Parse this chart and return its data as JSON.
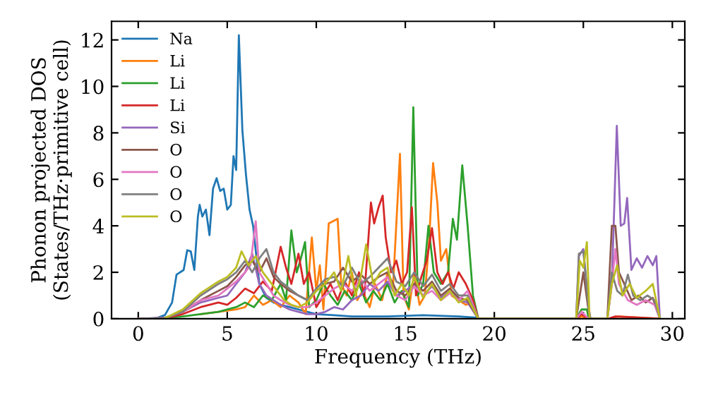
{
  "chart_data": {
    "type": "line",
    "xlabel": "Frequency (THz)",
    "ylabel": "Phonon projected DOS\n(States/THz·primitive cell)",
    "xlim": [
      -1.5,
      30.7
    ],
    "ylim": [
      0,
      12.8
    ],
    "xticks": [
      0,
      5,
      10,
      15,
      20,
      25,
      30
    ],
    "yticks": [
      0,
      2,
      4,
      6,
      8,
      10,
      12
    ],
    "grid": false,
    "legend": "top left",
    "series": [
      {
        "name": "Na",
        "color": "#1f77b4",
        "x": [
          0,
          1,
          1.5,
          1.9,
          2.15,
          2.55,
          2.75,
          2.95,
          3.15,
          3.35,
          3.45,
          3.6,
          3.8,
          4.0,
          4.2,
          4.4,
          4.6,
          4.8,
          5.0,
          5.2,
          5.35,
          5.5,
          5.65,
          5.85,
          6.05,
          6.25,
          6.45,
          6.8,
          7.2,
          7.6,
          8.0,
          8.5,
          9.0,
          9.5,
          10,
          11,
          12,
          14,
          16,
          18,
          19,
          19.2,
          24.6
        ],
        "values": [
          0,
          0.02,
          0.16,
          0.7,
          1.9,
          2.1,
          2.95,
          2.9,
          2.1,
          4.4,
          4.9,
          4.4,
          4.7,
          3.6,
          5.6,
          6.05,
          5.5,
          5.6,
          4.7,
          4.9,
          7.0,
          6.4,
          12.2,
          8.1,
          6.2,
          4.7,
          4.0,
          1.5,
          0.9,
          0.7,
          0.6,
          0.5,
          0.4,
          0.3,
          0.2,
          0.15,
          0.1,
          0.1,
          0.15,
          0.1,
          0.05,
          0,
          0
        ]
      },
      {
        "name": "Li",
        "color": "#ff7f0e",
        "x": [
          3.5,
          4.5,
          5.5,
          6.0,
          6.5,
          7.0,
          7.5,
          8.0,
          8.5,
          9.0,
          9.4,
          9.75,
          10.0,
          10.2,
          10.4,
          10.7,
          10.95,
          11.2,
          11.4,
          11.7,
          12.0,
          12.3,
          12.6,
          13.0,
          13.3,
          13.7,
          14.0,
          14.3,
          14.7,
          14.9,
          15.2,
          15.5,
          15.8,
          16.1,
          16.35,
          16.56,
          16.8,
          17.0,
          17.3,
          17.6,
          18.0,
          18.4,
          18.8,
          19.1,
          24.6,
          24.9,
          25.3,
          26.4,
          27,
          29.3
        ],
        "values": [
          0.2,
          0.3,
          0.4,
          0.5,
          1.0,
          0.6,
          0.8,
          0.5,
          1.0,
          0.7,
          0.2,
          3.5,
          1.2,
          2.3,
          0.4,
          4.1,
          4.2,
          4.3,
          1.5,
          1.0,
          2.0,
          0.8,
          1.2,
          0.5,
          1.5,
          0.8,
          2.0,
          1.2,
          7.1,
          1.0,
          0.4,
          2.0,
          0.6,
          1.0,
          3.5,
          6.7,
          5.0,
          2.5,
          3.0,
          1.0,
          0.8,
          0.6,
          0.7,
          0,
          0,
          0.1,
          0,
          0,
          0.1,
          0
        ]
      },
      {
        "name": "Li",
        "color": "#2ca02c",
        "x": [
          0,
          1.5,
          2.5,
          3.5,
          4.5,
          5.5,
          6.0,
          6.5,
          7.0,
          7.5,
          8.0,
          8.3,
          8.6,
          8.9,
          9.1,
          9.37,
          9.6,
          10.0,
          10.4,
          10.8,
          11.2,
          11.6,
          12.0,
          12.4,
          12.8,
          13.2,
          13.6,
          14.0,
          14.4,
          14.8,
          15.2,
          15.45,
          15.7,
          16.0,
          16.3,
          16.6,
          17.0,
          17.4,
          17.67,
          17.9,
          18.2,
          18.5,
          18.8,
          19.1,
          24.6,
          24.9,
          25.2,
          25.3,
          26.4
        ],
        "values": [
          0,
          0.02,
          0.1,
          0.2,
          0.3,
          0.5,
          0.7,
          0.5,
          1.0,
          0.8,
          1.5,
          0.8,
          3.8,
          2.0,
          2.5,
          3.3,
          0.5,
          0.8,
          1.5,
          1.0,
          0.6,
          1.2,
          0.8,
          1.5,
          0.7,
          1.2,
          0.8,
          1.5,
          0.7,
          1.2,
          0.5,
          9.1,
          1.0,
          1.5,
          4.0,
          2.0,
          1.5,
          2.0,
          4.3,
          3.4,
          6.6,
          4.0,
          1.0,
          0,
          0,
          0.4,
          0.4,
          0,
          0
        ]
      },
      {
        "name": "Li",
        "color": "#d62728",
        "x": [
          0,
          1.5,
          2.5,
          3.5,
          4.5,
          5.0,
          5.5,
          6.0,
          6.5,
          7.0,
          7.5,
          8.0,
          8.3,
          8.6,
          9.0,
          9.3,
          9.6,
          10.0,
          10.4,
          10.8,
          11.2,
          11.6,
          12.0,
          12.4,
          12.7,
          13.07,
          13.25,
          13.5,
          13.73,
          13.9,
          14.2,
          14.5,
          14.8,
          15.1,
          15.37,
          15.6,
          15.9,
          16.2,
          16.5,
          16.8,
          17.1,
          17.4,
          17.7,
          18.0,
          18.4,
          18.8,
          19.1,
          24.6,
          24.9,
          25.3,
          26.4,
          26.8,
          29.3
        ],
        "values": [
          0,
          0.02,
          0.2,
          0.5,
          0.7,
          0.6,
          0.9,
          1.3,
          1.1,
          1.6,
          1.2,
          3.1,
          2.2,
          1.5,
          2.8,
          1.5,
          2.0,
          0.5,
          1.0,
          1.5,
          0.8,
          1.6,
          1.0,
          2.0,
          1.0,
          5.0,
          4.1,
          4.8,
          5.3,
          3.5,
          2.0,
          2.5,
          1.5,
          2.0,
          4.8,
          1.0,
          1.8,
          2.5,
          3.9,
          2.0,
          1.5,
          2.0,
          1.3,
          2.0,
          1.5,
          0.8,
          0,
          0,
          0.2,
          0,
          0,
          0.1,
          0
        ]
      },
      {
        "name": "Si",
        "color": "#9467bd",
        "x": [
          0,
          1.5,
          2.5,
          3.5,
          4.5,
          5.0,
          5.5,
          6.0,
          6.4,
          6.8,
          7.2,
          7.6,
          8.0,
          8.5,
          9.0,
          9.5,
          10.0,
          10.5,
          11.0,
          11.5,
          12.0,
          12.5,
          13.0,
          13.5,
          14.0,
          14.5,
          15.0,
          15.5,
          16.0,
          16.5,
          17.0,
          17.5,
          18.0,
          18.5,
          19.1,
          24.6,
          24.75,
          25.0,
          25.3,
          25.4,
          26.35,
          26.6,
          26.88,
          27.1,
          27.3,
          27.46,
          27.7,
          28.0,
          28.3,
          28.6,
          28.9,
          29.1,
          29.3
        ],
        "values": [
          0,
          0.05,
          0.3,
          0.7,
          0.9,
          1.0,
          1.5,
          2.0,
          2.8,
          1.5,
          1.0,
          0.8,
          0.6,
          0.4,
          0.3,
          0.2,
          0.2,
          0.3,
          0.5,
          0.4,
          0.8,
          1.0,
          1.5,
          1.2,
          1.6,
          1.0,
          1.2,
          1.5,
          1.0,
          1.4,
          0.9,
          1.2,
          0.8,
          0.7,
          0,
          0,
          2.7,
          3.0,
          0.5,
          0,
          0,
          1.5,
          8.3,
          4.0,
          4.1,
          5.2,
          2.1,
          2.6,
          2.2,
          2.7,
          2.3,
          2.7,
          0
        ]
      },
      {
        "name": "O",
        "color": "#8c564b",
        "x": [
          0,
          1.5,
          2.5,
          3.5,
          4.5,
          5.0,
          5.5,
          6.0,
          6.4,
          6.8,
          7.2,
          7.6,
          8.0,
          8.5,
          9.0,
          9.5,
          10.0,
          10.5,
          11.0,
          11.5,
          12.0,
          12.5,
          13.0,
          13.5,
          14.0,
          14.5,
          15.0,
          15.5,
          16.0,
          16.5,
          17.0,
          17.5,
          18.0,
          18.5,
          19.1,
          24.6,
          24.8,
          25.0,
          25.3,
          25.4,
          26.35,
          26.6,
          26.8,
          27.0,
          27.3,
          27.7,
          28.1,
          28.5,
          28.9,
          29.3
        ],
        "values": [
          0,
          0.03,
          0.3,
          0.8,
          1.2,
          1.4,
          1.8,
          2.3,
          2.5,
          2.0,
          2.6,
          1.8,
          1.5,
          1.2,
          1.0,
          0.8,
          1.2,
          1.5,
          1.6,
          2.2,
          1.6,
          1.9,
          1.5,
          1.8,
          2.0,
          1.2,
          1.0,
          1.5,
          1.2,
          1.6,
          1.0,
          1.3,
          0.9,
          0.8,
          0,
          0,
          1.0,
          2.0,
          0.3,
          0,
          0,
          4.0,
          4.0,
          2.0,
          1.5,
          0.8,
          1.0,
          0.7,
          0.9,
          0
        ]
      },
      {
        "name": "O",
        "color": "#e377c2",
        "x": [
          0,
          1.5,
          2.5,
          3.5,
          4.5,
          5.0,
          5.5,
          6.0,
          6.3,
          6.6,
          6.8,
          7.2,
          7.6,
          8.0,
          8.5,
          9.0,
          9.5,
          10.0,
          10.5,
          11.0,
          11.5,
          12.0,
          12.5,
          13.0,
          13.5,
          14.0,
          14.5,
          15.0,
          15.5,
          16.0,
          16.5,
          17.0,
          17.5,
          18.0,
          18.5,
          19.1,
          24.6,
          24.9,
          25.3,
          26.35,
          26.6,
          26.8,
          27.0,
          27.5,
          28.0,
          28.5,
          29.0,
          29.3
        ],
        "values": [
          0,
          0.03,
          0.3,
          0.8,
          1.0,
          1.3,
          1.6,
          2.0,
          2.3,
          4.2,
          2.0,
          1.5,
          1.0,
          0.8,
          0.6,
          0.5,
          0.5,
          0.7,
          1.0,
          1.3,
          1.5,
          1.2,
          1.7,
          1.2,
          1.5,
          1.8,
          1.0,
          0.8,
          1.4,
          1.0,
          1.2,
          0.8,
          1.1,
          0.8,
          1.2,
          0,
          0,
          0.3,
          0,
          0,
          1.5,
          3.0,
          1.5,
          0.8,
          0.6,
          0.8,
          0.6,
          0
        ]
      },
      {
        "name": "O",
        "color": "#7f7f7f",
        "x": [
          0,
          1.5,
          2.5,
          3.5,
          4.5,
          5.0,
          5.5,
          6.0,
          6.4,
          6.8,
          7.2,
          7.6,
          8.0,
          8.5,
          9.0,
          9.5,
          10.0,
          10.5,
          11.0,
          11.5,
          12.0,
          12.5,
          13.0,
          13.5,
          14.0,
          14.5,
          15.0,
          15.5,
          16.0,
          16.5,
          17.0,
          17.5,
          18.0,
          18.5,
          19.1,
          24.6,
          24.75,
          25.0,
          25.3,
          25.4,
          26.35,
          26.6,
          26.9,
          27.2,
          27.5,
          27.8,
          28.2,
          28.6,
          29.0,
          29.3
        ],
        "values": [
          0,
          0.03,
          0.3,
          1.0,
          1.5,
          1.7,
          2.0,
          2.5,
          2.0,
          2.6,
          3.0,
          2.0,
          1.6,
          1.3,
          1.0,
          0.8,
          1.3,
          1.7,
          1.8,
          1.4,
          2.2,
          1.5,
          1.8,
          2.2,
          2.6,
          1.6,
          1.4,
          2.0,
          1.4,
          1.9,
          1.2,
          1.5,
          1.0,
          1.0,
          0,
          0,
          2.8,
          2.9,
          0.4,
          0,
          0,
          2.0,
          1.2,
          1.0,
          1.9,
          1.0,
          0.8,
          1.0,
          0.8,
          0
        ]
      },
      {
        "name": "O",
        "color": "#bcbd22",
        "x": [
          1.5,
          2.5,
          3.5,
          4.5,
          5.0,
          5.5,
          5.8,
          6.2,
          6.6,
          7.0,
          7.4,
          7.8,
          8.2,
          8.6,
          9.0,
          9.5,
          10.0,
          10.5,
          11.0,
          11.4,
          11.8,
          12.2,
          12.5,
          12.8,
          13.2,
          13.6,
          14.0,
          14.4,
          14.8,
          15.2,
          15.5,
          16.0,
          16.5,
          17.0,
          17.5,
          18.0,
          18.5,
          19.1,
          24.6,
          24.8,
          25.0,
          25.2,
          25.35,
          26.35,
          26.6,
          26.9,
          27.2,
          27.6,
          28.0,
          28.5,
          28.9,
          29.3
        ],
        "values": [
          0.03,
          0.4,
          1.1,
          1.6,
          1.8,
          2.2,
          2.9,
          2.3,
          2.7,
          2.0,
          1.6,
          1.2,
          0.8,
          0.6,
          0.5,
          0.7,
          1.2,
          1.5,
          2.0,
          1.2,
          2.7,
          1.0,
          1.8,
          3.2,
          1.5,
          2.0,
          2.2,
          1.0,
          1.5,
          1.0,
          1.8,
          0.9,
          1.5,
          0.8,
          1.2,
          0.7,
          0.9,
          0,
          0,
          2.5,
          2.2,
          3.3,
          0,
          0,
          1.5,
          2.3,
          1.0,
          1.5,
          0.9,
          1.2,
          1.5,
          0
        ]
      }
    ]
  }
}
